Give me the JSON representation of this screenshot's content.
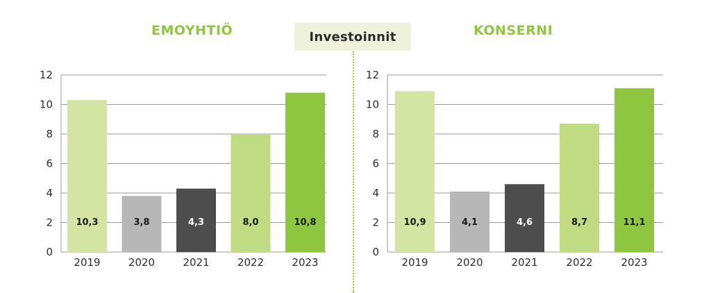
{
  "center_label": "Investoinnit",
  "panels": [
    {
      "title": "EMOYHTIÖ"
    },
    {
      "title": "KONSERNI"
    }
  ],
  "colors": {
    "accent": "#8ec63f",
    "bar_2019": "#d3e4a3",
    "bar_2020": "#b7b7b7",
    "bar_2021": "#4d4d4d",
    "bar_2022": "#c1db83",
    "bar_2023": "#8ec63f",
    "grid": "#9a9a9a"
  },
  "chart_data": [
    {
      "type": "bar",
      "title": "EMOYHTIÖ",
      "categories": [
        "2019",
        "2020",
        "2021",
        "2022",
        "2023"
      ],
      "values": [
        10.3,
        3.8,
        4.3,
        8.0,
        10.8
      ],
      "data_labels": [
        "10,3",
        "3,8",
        "4,3",
        "8,0",
        "10,8"
      ],
      "yticks": [
        "0",
        "2",
        "4",
        "6",
        "8",
        "10",
        "12"
      ],
      "ylim": [
        0,
        12
      ],
      "grid": true,
      "legend": "none"
    },
    {
      "type": "bar",
      "title": "KONSERNI",
      "categories": [
        "2019",
        "2020",
        "2021",
        "2022",
        "2023"
      ],
      "values": [
        10.9,
        4.1,
        4.6,
        8.7,
        11.1
      ],
      "data_labels": [
        "10,9",
        "4,1",
        "4,6",
        "8,7",
        "11,1"
      ],
      "yticks": [
        "0",
        "2",
        "4",
        "6",
        "8",
        "10",
        "12"
      ],
      "ylim": [
        0,
        12
      ],
      "grid": true,
      "legend": "none"
    }
  ]
}
